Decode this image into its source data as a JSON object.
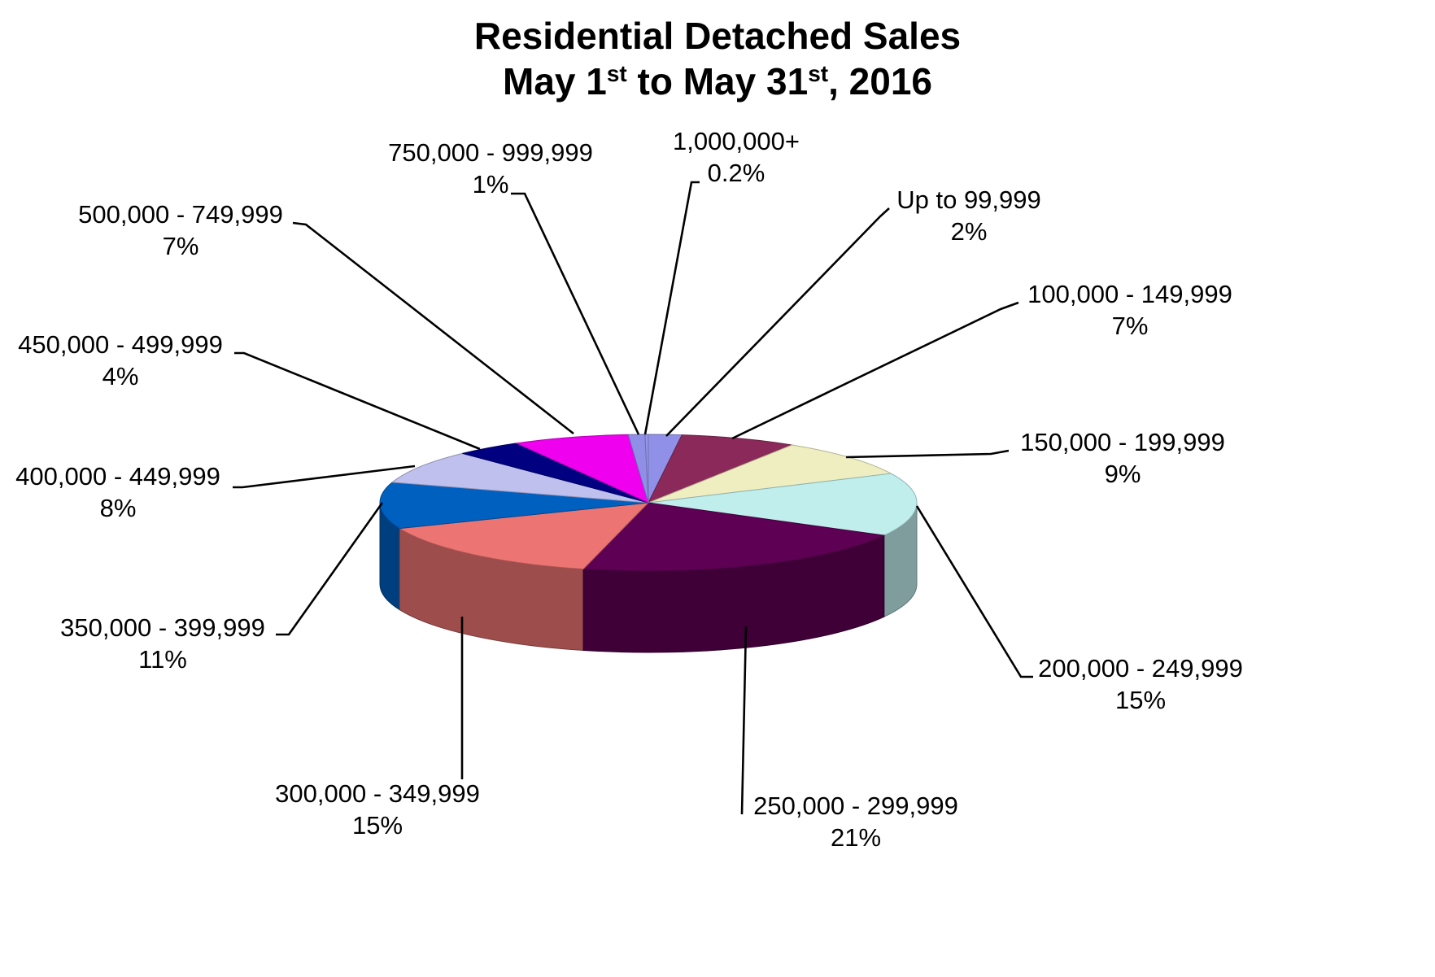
{
  "chart_data": {
    "type": "pie",
    "title_lines": [
      {
        "parts": [
          "Residential Detached Sales"
        ]
      },
      {
        "parts": [
          "May 1",
          "st",
          " to May 31",
          "st",
          ", 2016"
        ]
      }
    ],
    "slices": [
      {
        "label": "Up to 99,999",
        "value_label": "2%",
        "value": 2,
        "color": "#9090e8"
      },
      {
        "label": "100,000 - 149,999",
        "value_label": "7%",
        "value": 7,
        "color": "#8b2a5a"
      },
      {
        "label": "150,000 - 199,999",
        "value_label": "9%",
        "value": 9,
        "color": "#efeec0"
      },
      {
        "label": "200,000 - 249,999",
        "value_label": "15%",
        "value": 15,
        "color": "#bfeeed"
      },
      {
        "label": "250,000 - 299,999",
        "value_label": "21%",
        "value": 21,
        "color": "#5e0054"
      },
      {
        "label": "300,000 - 349,999",
        "value_label": "15%",
        "value": 15,
        "color": "#ec7573"
      },
      {
        "label": "350,000 - 399,999",
        "value_label": "11%",
        "value": 11,
        "color": "#0060c0"
      },
      {
        "label": "400,000 - 449,999",
        "value_label": "8%",
        "value": 8,
        "color": "#c0c0ef"
      },
      {
        "label": "450,000 - 499,999",
        "value_label": "4%",
        "value": 4,
        "color": "#000080"
      },
      {
        "label": "500,000 - 749,999",
        "value_label": "7%",
        "value": 7,
        "color": "#ef00ef"
      },
      {
        "label": "750,000 - 999,999",
        "value_label": "1%",
        "value": 1,
        "color": "#8f8fe8"
      },
      {
        "label": "1,000,000+",
        "value_label": "0.2%",
        "value": 0.2,
        "color": "#9595ea"
      }
    ],
    "legend": "none",
    "style": "3d-pie"
  }
}
